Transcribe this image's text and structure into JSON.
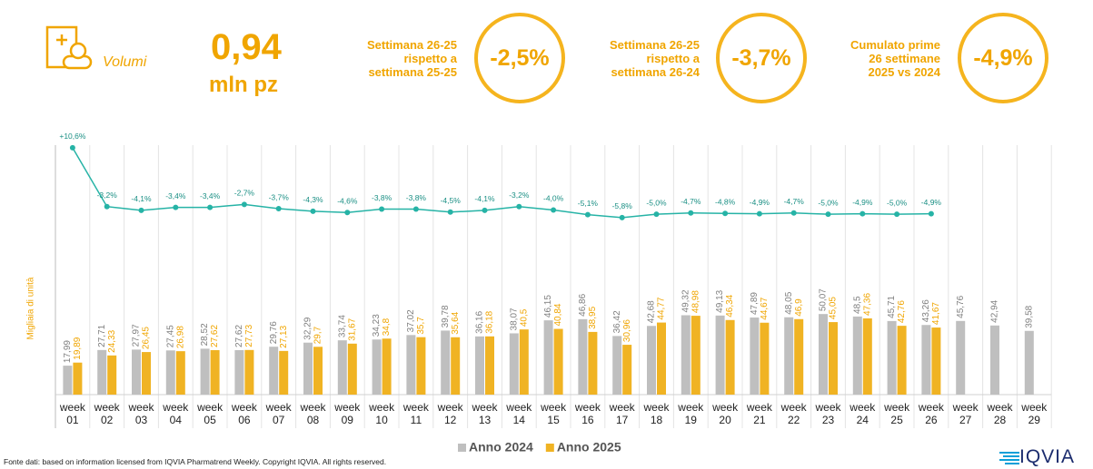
{
  "header": {
    "label": "Volumi",
    "value": "0,94",
    "unit": "mln pz",
    "kpis": [
      {
        "lines": [
          "Settimana 26-25",
          "rispetto a",
          "settimana 25-25"
        ],
        "value": "-2,5%"
      },
      {
        "lines": [
          "Settimana 26-25",
          "rispetto a",
          "settimana 26-24"
        ],
        "value": "-3,7%"
      },
      {
        "lines": [
          "Cumulato prime",
          "26 settimane",
          "2025 vs 2024"
        ],
        "value": "-4,9%"
      }
    ]
  },
  "chart_data": {
    "type": "bar",
    "y_label": "Migliaia di unità",
    "categories": [
      "week 01",
      "week 02",
      "week 03",
      "week 04",
      "week 05",
      "week 06",
      "week 07",
      "week 08",
      "week 09",
      "week 10",
      "week 11",
      "week 12",
      "week 13",
      "week 14",
      "week 15",
      "week 16",
      "week 17",
      "week 18",
      "week 19",
      "week 20",
      "week 21",
      "week 22",
      "week 23",
      "week 24",
      "week 25",
      "week 26",
      "week 27",
      "week 28",
      "week 29"
    ],
    "ylim": [
      0,
      155
    ],
    "y2lim": [
      -47.3,
      11.2
    ],
    "legend": "bottom",
    "series": [
      {
        "name": "Anno 2024",
        "color": "#bfbfbf",
        "values": [
          17.99,
          27.71,
          27.97,
          27.45,
          28.52,
          27.62,
          29.76,
          32.29,
          33.74,
          34.23,
          37.02,
          39.78,
          36.16,
          38.07,
          46.15,
          46.86,
          36.42,
          42.68,
          49.32,
          49.13,
          47.89,
          48.05,
          50.07,
          48.5,
          45.71,
          43.26,
          45.76,
          42.94,
          39.58
        ],
        "value_labels": [
          "17,99",
          "27,71",
          "27,97",
          "27,45",
          "28,52",
          "27,62",
          "29,76",
          "32,29",
          "33,74",
          "34,23",
          "37,02",
          "39,78",
          "36,16",
          "38,07",
          "46,15",
          "46,86",
          "36,42",
          "42,68",
          "49,32",
          "49,13",
          "47,89",
          "48,05",
          "50,07",
          "48,5",
          "45,71",
          "43,26",
          "45,76",
          "42,94",
          "39,58"
        ]
      },
      {
        "name": "Anno 2025",
        "color": "#f0b323",
        "values": [
          19.89,
          24.33,
          26.45,
          26.98,
          27.62,
          27.73,
          27.13,
          29.7,
          31.67,
          34.8,
          35.7,
          35.64,
          36.18,
          40.5,
          40.84,
          38.95,
          30.96,
          44.77,
          48.98,
          46.34,
          44.67,
          46.9,
          45.05,
          47.36,
          42.76,
          41.67,
          null,
          null,
          null
        ],
        "value_labels": [
          "19,89",
          "24,33",
          "26,45",
          "26,98",
          "27,62",
          "27,73",
          "27,13",
          "29,7",
          "31,67",
          "34,8",
          "35,7",
          "35,64",
          "36,18",
          "40,5",
          "40,84",
          "38,95",
          "30,96",
          "44,77",
          "48,98",
          "46,34",
          "44,67",
          "46,9",
          "45,05",
          "47,36",
          "42,76",
          "41,67",
          null,
          null,
          null
        ]
      },
      {
        "type": "line",
        "axis": "y2",
        "color": "#26b3a6",
        "values": [
          10.6,
          -3.2,
          -4.1,
          -3.4,
          -3.4,
          -2.7,
          -3.7,
          -4.3,
          -4.6,
          -3.8,
          -3.8,
          -4.5,
          -4.1,
          -3.2,
          -4.0,
          -5.1,
          -5.8,
          -5.0,
          -4.7,
          -4.8,
          -4.9,
          -4.7,
          -5.0,
          -4.9,
          -5.0,
          -4.9,
          null,
          null,
          null
        ],
        "value_labels": [
          "+10,6%",
          "-3,2%",
          "-4,1%",
          "-3,4%",
          "-3,4%",
          "-2,7%",
          "-3,7%",
          "-4,3%",
          "-4,6%",
          "-3,8%",
          "-3,8%",
          "-4,5%",
          "-4,1%",
          "-3,2%",
          "-4,0%",
          "-5,1%",
          "-5,8%",
          "-5,0%",
          "-4,7%",
          "-4,8%",
          "-4,9%",
          "-4,7%",
          "-5,0%",
          "-4,9%",
          "-5,0%",
          "-4,9%",
          null,
          null,
          null
        ]
      }
    ]
  },
  "footer": "Fonte dati: based on information licensed from IQVIA Pharmatrend Weekly. Copyright IQVIA. All rights reserved.",
  "logo": "IQVIA"
}
